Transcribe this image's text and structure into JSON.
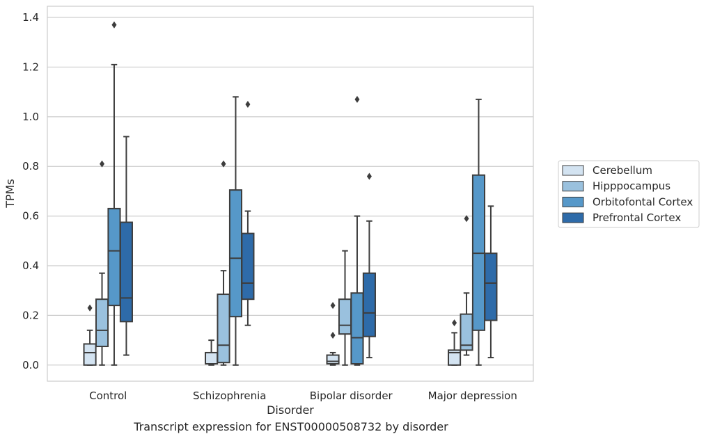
{
  "caption": "Transcript expression for ENST00000508732 by disorder",
  "chart_data": {
    "type": "boxplot",
    "xlabel": "Disorder",
    "ylabel": "TPMs",
    "ylim": [
      -0.065,
      1.445
    ],
    "yticks": [
      0.0,
      0.2,
      0.4,
      0.6,
      0.8,
      1.0,
      1.2,
      1.4
    ],
    "ytick_labels": [
      "0.0",
      "0.2",
      "0.4",
      "0.6",
      "0.8",
      "1.0",
      "1.2",
      "1.4"
    ],
    "grid": "horizontal",
    "legend_position": "right",
    "categories": [
      "Control",
      "Schizophrenia",
      "Bipolar disorder",
      "Major depression"
    ],
    "series": [
      {
        "name": "Cerebellum",
        "color": "#d3e3f1",
        "boxes": [
          {
            "q1": 0.0,
            "median": 0.05,
            "q3": 0.085,
            "whislo": 0.0,
            "whishi": 0.14,
            "fliers": [
              0.23
            ]
          },
          {
            "q1": 0.005,
            "median": 0.005,
            "q3": 0.05,
            "whislo": 0.0,
            "whishi": 0.1,
            "fliers": []
          },
          {
            "q1": 0.005,
            "median": 0.015,
            "q3": 0.04,
            "whislo": 0.0,
            "whishi": 0.05,
            "fliers": [
              0.12,
              0.24
            ]
          },
          {
            "q1": 0.0,
            "median": 0.05,
            "q3": 0.06,
            "whislo": 0.0,
            "whishi": 0.13,
            "fliers": [
              0.17
            ]
          }
        ]
      },
      {
        "name": "Hipppocampus",
        "color": "#9ac1de",
        "boxes": [
          {
            "q1": 0.075,
            "median": 0.14,
            "q3": 0.265,
            "whislo": 0.0,
            "whishi": 0.37,
            "fliers": [
              0.81
            ]
          },
          {
            "q1": 0.01,
            "median": 0.08,
            "q3": 0.285,
            "whislo": 0.0,
            "whishi": 0.38,
            "fliers": [
              0.81
            ]
          },
          {
            "q1": 0.125,
            "median": 0.16,
            "q3": 0.265,
            "whislo": 0.0,
            "whishi": 0.46,
            "fliers": []
          },
          {
            "q1": 0.06,
            "median": 0.08,
            "q3": 0.205,
            "whislo": 0.04,
            "whishi": 0.29,
            "fliers": [
              0.59
            ]
          }
        ]
      },
      {
        "name": "Orbitofontal Cortex",
        "color": "#5698c9",
        "boxes": [
          {
            "q1": 0.24,
            "median": 0.46,
            "q3": 0.63,
            "whislo": 0.0,
            "whishi": 1.21,
            "fliers": [
              1.37
            ]
          },
          {
            "q1": 0.195,
            "median": 0.43,
            "q3": 0.705,
            "whislo": 0.0,
            "whishi": 1.08,
            "fliers": []
          },
          {
            "q1": 0.005,
            "median": 0.11,
            "q3": 0.29,
            "whislo": 0.0,
            "whishi": 0.6,
            "fliers": [
              1.07
            ]
          },
          {
            "q1": 0.14,
            "median": 0.45,
            "q3": 0.765,
            "whislo": 0.0,
            "whishi": 1.07,
            "fliers": []
          }
        ]
      },
      {
        "name": "Prefrontal Cortex",
        "color": "#2e6ba9",
        "boxes": [
          {
            "q1": 0.175,
            "median": 0.27,
            "q3": 0.575,
            "whislo": 0.04,
            "whishi": 0.92,
            "fliers": []
          },
          {
            "q1": 0.265,
            "median": 0.33,
            "q3": 0.53,
            "whislo": 0.16,
            "whishi": 0.62,
            "fliers": [
              1.05
            ]
          },
          {
            "q1": 0.115,
            "median": 0.21,
            "q3": 0.37,
            "whislo": 0.03,
            "whishi": 0.58,
            "fliers": [
              0.76
            ]
          },
          {
            "q1": 0.18,
            "median": 0.33,
            "q3": 0.45,
            "whislo": 0.03,
            "whishi": 0.64,
            "fliers": []
          }
        ]
      }
    ]
  }
}
